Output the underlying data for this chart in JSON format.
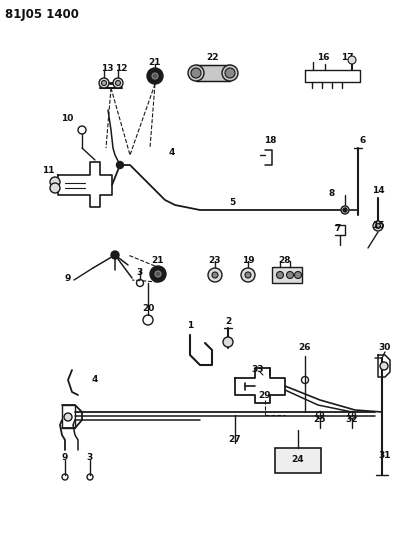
{
  "title": "81J05 1400",
  "bg_color": "#ffffff",
  "lc": "#1a1a1a",
  "figsize": [
    4.02,
    5.33
  ],
  "dpi": 100
}
